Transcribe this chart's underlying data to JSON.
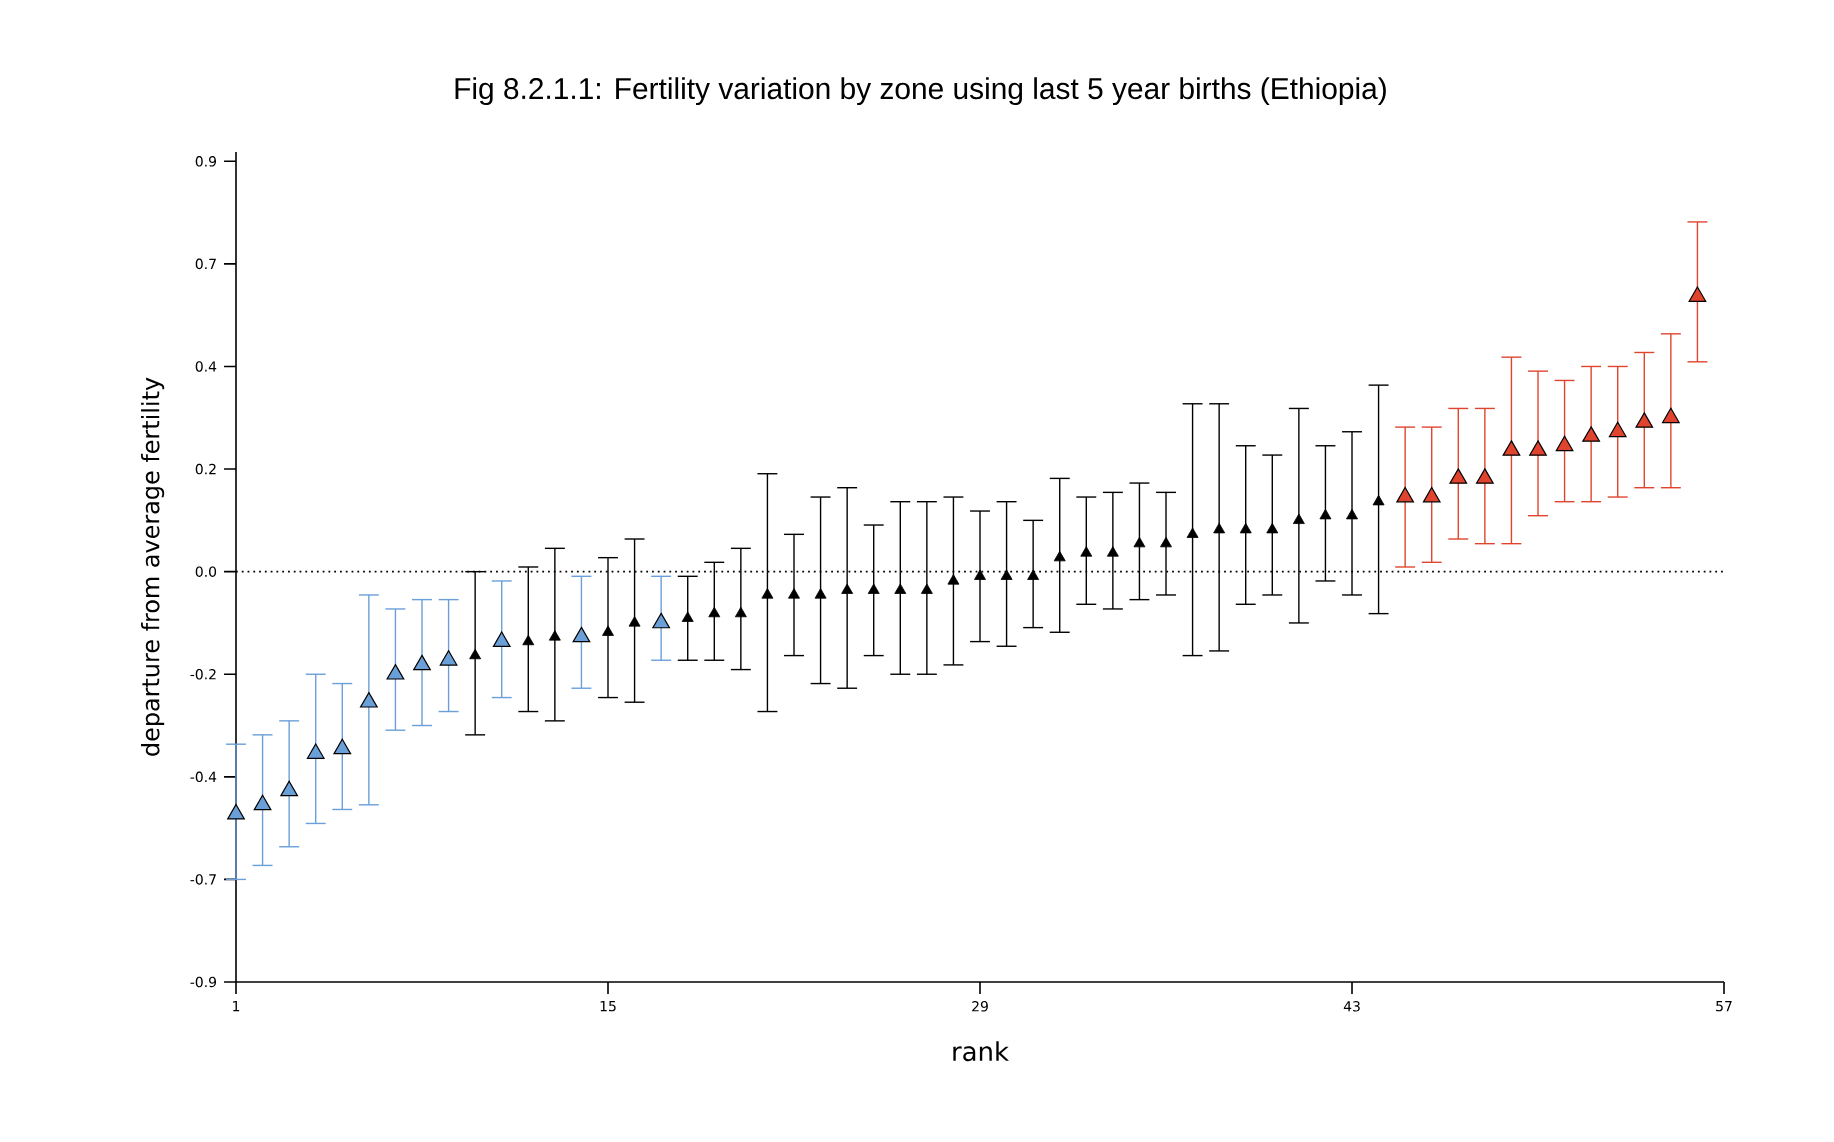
{
  "chart_data": {
    "type": "scatter",
    "title": "Fig 8.2.1.1: Fertility variation by zone using last 5 year births (Ethiopia)",
    "xlabel": "rank",
    "ylabel": "departure from average fertility",
    "xlim": [
      1,
      57
    ],
    "ylim": [
      -0.88,
      0.9
    ],
    "xticks": [
      1,
      15,
      29,
      43,
      57
    ],
    "yticks": [
      {
        "value": -0.88,
        "label": "-0.9"
      },
      {
        "value": -0.66,
        "label": "-0.7"
      },
      {
        "value": -0.44,
        "label": "-0.4"
      },
      {
        "value": -0.22,
        "label": "-0.2"
      },
      {
        "value": 0,
        "label": "0.0"
      },
      {
        "value": 0.22,
        "label": "0.2"
      },
      {
        "value": 0.44,
        "label": "0.4"
      },
      {
        "value": 0.66,
        "label": "0.7"
      },
      {
        "value": 0.88,
        "label": "0.9"
      }
    ],
    "marker": "triangle",
    "grid": false,
    "ref_lines": [
      {
        "axis": "y",
        "value": 0,
        "line_style": "dotted"
      }
    ],
    "series": [
      {
        "color": "#6a9fd8",
        "x": [
          1,
          2,
          3,
          4,
          5,
          6,
          7,
          8,
          9,
          11,
          14,
          17
        ],
        "values": [
          -0.52,
          -0.5,
          -0.47,
          -0.39,
          -0.38,
          -0.28,
          -0.22,
          -0.2,
          -0.19,
          -0.15,
          -0.14,
          -0.11
        ],
        "errors": [
          [
            -0.66,
            -0.37
          ],
          [
            -0.63,
            -0.35
          ],
          [
            -0.59,
            -0.32
          ],
          [
            -0.54,
            -0.22
          ],
          [
            -0.51,
            -0.24
          ],
          [
            -0.5,
            -0.05
          ],
          [
            -0.34,
            -0.08
          ],
          [
            -0.33,
            -0.06
          ],
          [
            -0.3,
            -0.06
          ],
          [
            -0.27,
            -0.02
          ],
          [
            -0.25,
            -0.01
          ],
          [
            -0.19,
            -0.01
          ]
        ]
      },
      {
        "color": "#000000",
        "x": [
          10,
          12,
          13,
          15,
          16,
          18,
          19,
          20,
          21,
          22,
          23,
          24,
          25,
          26,
          27,
          28,
          29,
          30,
          31,
          32,
          33,
          34,
          35,
          36,
          37,
          38,
          39,
          40,
          41,
          42,
          43,
          44
        ],
        "values": [
          -0.18,
          -0.15,
          -0.14,
          -0.13,
          -0.11,
          -0.1,
          -0.09,
          -0.09,
          -0.05,
          -0.05,
          -0.05,
          -0.04,
          -0.04,
          -0.04,
          -0.04,
          -0.02,
          -0.01,
          -0.01,
          -0.01,
          0.03,
          0.04,
          0.04,
          0.06,
          0.06,
          0.08,
          0.09,
          0.09,
          0.09,
          0.11,
          0.12,
          0.12,
          0.15
        ],
        "errors": [
          [
            -0.35,
            0.0
          ],
          [
            -0.3,
            0.01
          ],
          [
            -0.32,
            0.05
          ],
          [
            -0.27,
            0.03
          ],
          [
            -0.28,
            0.07
          ],
          [
            -0.19,
            -0.01
          ],
          [
            -0.19,
            0.02
          ],
          [
            -0.21,
            0.05
          ],
          [
            -0.3,
            0.21
          ],
          [
            -0.18,
            0.08
          ],
          [
            -0.24,
            0.16
          ],
          [
            -0.25,
            0.18
          ],
          [
            -0.18,
            0.1
          ],
          [
            -0.22,
            0.15
          ],
          [
            -0.22,
            0.15
          ],
          [
            -0.2,
            0.16
          ],
          [
            -0.15,
            0.13
          ],
          [
            -0.16,
            0.15
          ],
          [
            -0.12,
            0.11
          ],
          [
            -0.13,
            0.2
          ],
          [
            -0.07,
            0.16
          ],
          [
            -0.08,
            0.17
          ],
          [
            -0.06,
            0.19
          ],
          [
            -0.05,
            0.17
          ],
          [
            -0.18,
            0.36
          ],
          [
            -0.17,
            0.36
          ],
          [
            -0.07,
            0.27
          ],
          [
            -0.05,
            0.25
          ],
          [
            -0.11,
            0.35
          ],
          [
            -0.02,
            0.27
          ],
          [
            -0.05,
            0.3
          ],
          [
            -0.09,
            0.4
          ]
        ]
      },
      {
        "color": "#e0442f",
        "x": [
          45,
          46,
          47,
          48,
          49,
          50,
          51,
          52,
          53,
          54,
          55,
          56
        ],
        "values": [
          0.16,
          0.16,
          0.2,
          0.2,
          0.26,
          0.26,
          0.27,
          0.29,
          0.3,
          0.32,
          0.33,
          0.59
        ],
        "errors": [
          [
            0.01,
            0.31
          ],
          [
            0.02,
            0.31
          ],
          [
            0.07,
            0.35
          ],
          [
            0.06,
            0.35
          ],
          [
            0.06,
            0.46
          ],
          [
            0.12,
            0.43
          ],
          [
            0.15,
            0.41
          ],
          [
            0.15,
            0.44
          ],
          [
            0.16,
            0.44
          ],
          [
            0.18,
            0.47
          ],
          [
            0.18,
            0.51
          ],
          [
            0.45,
            0.75
          ]
        ]
      }
    ]
  }
}
